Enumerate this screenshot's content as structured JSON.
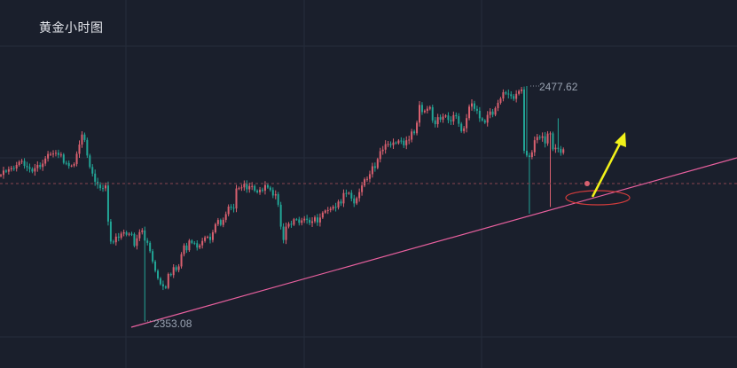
{
  "chart_data": {
    "type": "candlestick",
    "title": "黄金小时图",
    "price_range": [
      2340,
      2485
    ],
    "high_label": "2477.62",
    "low_label": "2353.08",
    "colors": {
      "up": "#d9606f",
      "down": "#22a596",
      "trendline": "#e8609e",
      "arrow": "#f2f21a",
      "ellipse": "#d23c3c",
      "grid": "#252c3b",
      "dashed": "#8a4450",
      "text": "#9aa3b2"
    },
    "closes": [
      2430.5,
      2432.8,
      2432.2,
      2433.5,
      2434.1,
      2433.9,
      2435.8,
      2437.4,
      2437.9,
      2435.3,
      2434.6,
      2433.7,
      2432.3,
      2434.1,
      2435.8,
      2434.7,
      2436.5,
      2439.2,
      2441.6,
      2441.6,
      2441.8,
      2442.2,
      2441.1,
      2441.3,
      2436.9,
      2436.8,
      2435.2,
      2435.4,
      2436.3,
      2441.7,
      2446.6,
      2451.9,
      2449.0,
      2440.8,
      2434.7,
      2431.2,
      2426.9,
      2425.3,
      2423.5,
      2423.4,
      2424.9,
      2405.8,
      2395.2,
      2394.8,
      2397.8,
      2397.2,
      2399.4,
      2400.1,
      2398.8,
      2399.3,
      2399.2,
      2392.9,
      2396.9,
      2400.2,
      2401.1,
      2395.7,
      2394.5,
      2390.1,
      2384.6,
      2379.7,
      2375.7,
      2372.6,
      2371.4,
      2370.6,
      2378.0,
      2377.4,
      2381.6,
      2380.1,
      2382.0,
      2388.5,
      2393.1,
      2390.6,
      2395.7,
      2394.5,
      2394.3,
      2392.0,
      2393.2,
      2395.5,
      2397.4,
      2397.7,
      2396.0,
      2400.1,
      2404.4,
      2406.6,
      2404.0,
      2406.7,
      2409.7,
      2413.7,
      2413.1,
      2412.7,
      2423.3,
      2423.5,
      2423.9,
      2425.8,
      2422.9,
      2424.6,
      2424.6,
      2422.2,
      2421.3,
      2422.7,
      2422.2,
      2425.1,
      2423.8,
      2422.5,
      2419.6,
      2420.3,
      2414.7,
      2403.1,
      2396.0,
      2403.1,
      2404.6,
      2404.1,
      2407.0,
      2406.9,
      2405.1,
      2406.4,
      2407.3,
      2406.7,
      2405.1,
      2405.9,
      2408.0,
      2405.3,
      2407.9,
      2410.5,
      2411.6,
      2411.8,
      2412.6,
      2413.6,
      2413.2,
      2416.4,
      2415.4,
      2420.9,
      2420.6,
      2421.0,
      2418.0,
      2415.4,
      2418.2,
      2421.4,
      2424.9,
      2428.2,
      2428.4,
      2430.9,
      2435.1,
      2434.2,
      2438.9,
      2443.1,
      2443.9,
      2446.8,
      2446.9,
      2446.3,
      2447.7,
      2447.3,
      2448.7,
      2448.6,
      2446.2,
      2448.9,
      2449.2,
      2453.5,
      2452.6,
      2458.2,
      2467.6,
      2463.8,
      2464.5,
      2465.6,
      2466.4,
      2459.4,
      2457.4,
      2461.1,
      2459.8,
      2461.4,
      2462.0,
      2459.6,
      2458.9,
      2462.2,
      2461.6,
      2457.6,
      2453.7,
      2455.2,
      2460.6,
      2466.7,
      2468.4,
      2465.5,
      2464.5,
      2460.5,
      2459.4,
      2458.2,
      2462.3,
      2464.1,
      2462.4,
      2465.9,
      2468.7,
      2471.0,
      2474.3,
      2473.6,
      2473.2,
      2472.3,
      2470.8,
      2473.5,
      2474.9,
      2475.8,
      2443.3,
      2440.8,
      2440.0,
      2442.5,
      2448.9,
      2450.6,
      2450.1,
      2451.0,
      2447.2,
      2452.4,
      2452.5,
      2444.1,
      2444.9,
      2444.3,
      2442.2,
      2444.1
    ]
  }
}
